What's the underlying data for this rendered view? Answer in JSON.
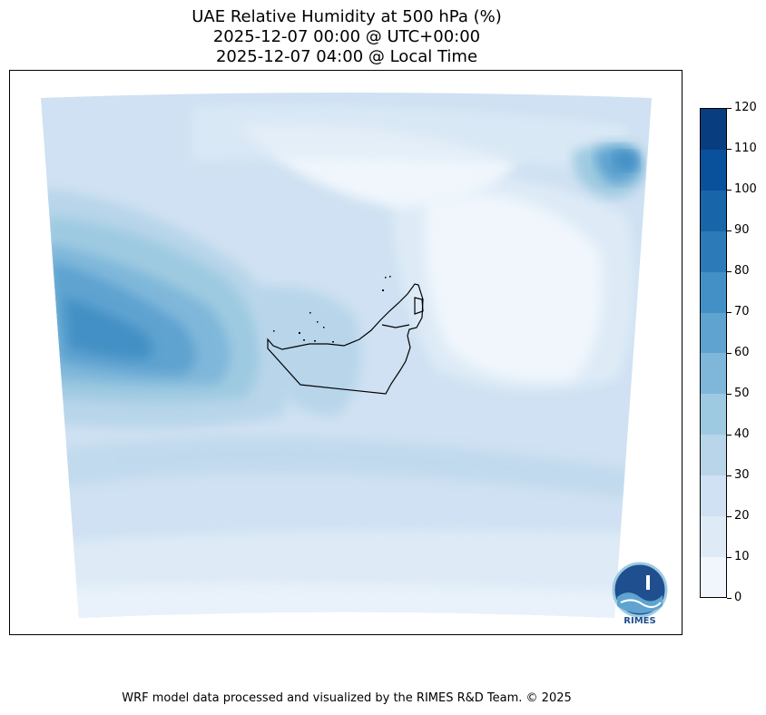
{
  "title_lines": [
    "UAE Relative Humidity at 500 hPa (%)",
    "2025-12-07 00:00 @ UTC+00:00",
    "2025-12-07 04:00 @ Local Time"
  ],
  "colorbar": {
    "ticks": [
      0,
      10,
      20,
      30,
      40,
      50,
      60,
      70,
      80,
      90,
      100,
      110,
      120
    ],
    "colors": [
      "#f0f6fc",
      "#deebf7",
      "#cfe1f2",
      "#b8d5ea",
      "#9ecae1",
      "#7fb7da",
      "#5fa3d0",
      "#4290c5",
      "#2c7ab8",
      "#1865aa",
      "#0a519c",
      "#083d7f"
    ]
  },
  "logo_text": "RIMES",
  "footer": "WRF model data processed and visualized by the RIMES R&D Team. © 2025"
}
